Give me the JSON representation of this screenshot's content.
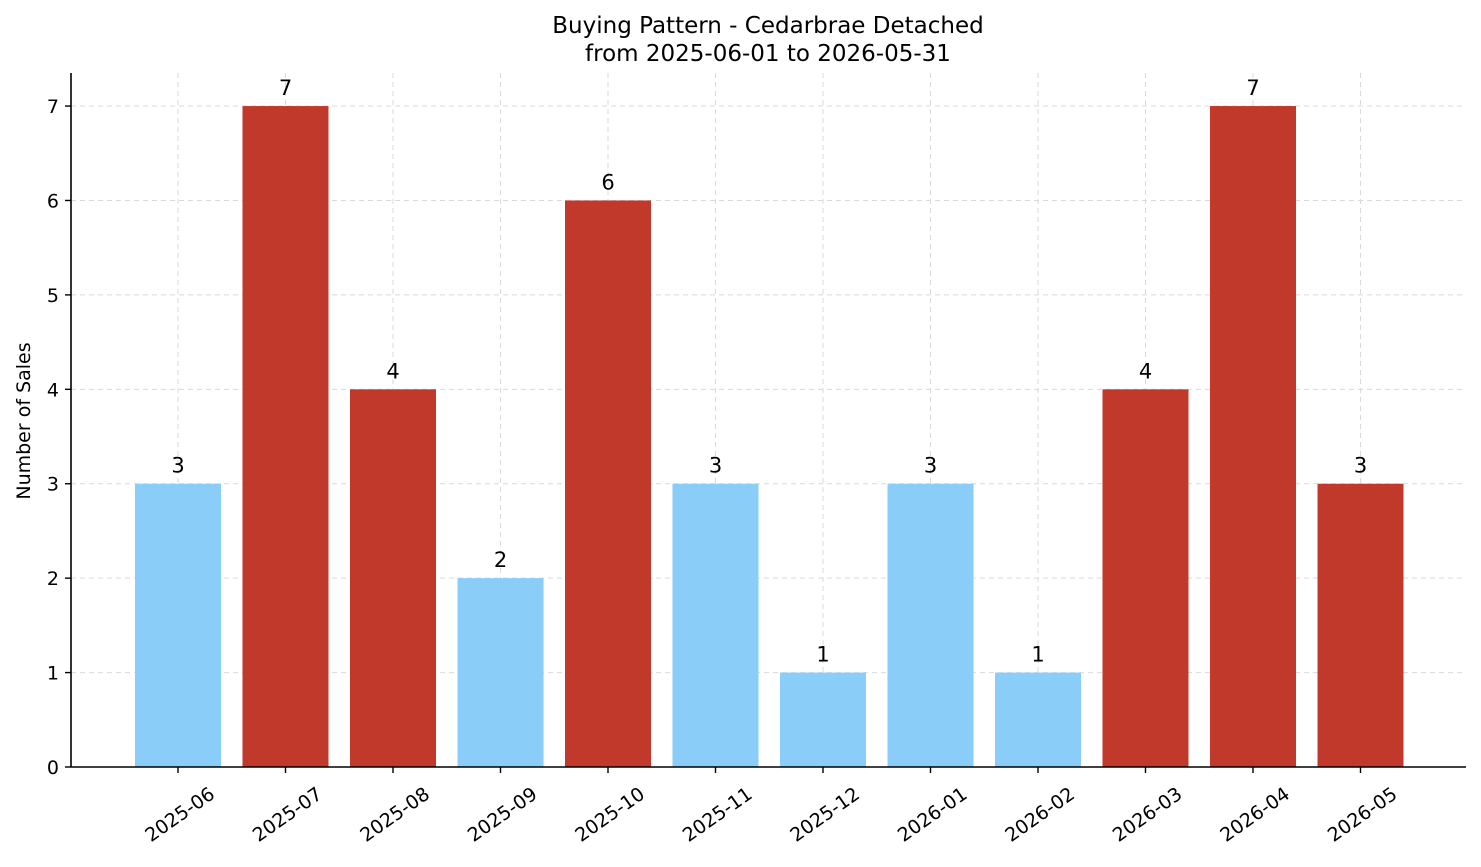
{
  "chart_data": {
    "type": "bar",
    "title": "Buying Pattern - Cedarbrae Detached",
    "subtitle": "from 2025-06-01 to 2026-05-31",
    "xlabel": "",
    "ylabel": "Number of Sales",
    "ylim": [
      0,
      7.35
    ],
    "yticks": [
      "0",
      "1",
      "2",
      "3",
      "4",
      "5",
      "6",
      "7"
    ],
    "grid": true,
    "categories": [
      "2025-06",
      "2025-07",
      "2025-08",
      "2025-09",
      "2025-10",
      "2025-11",
      "2025-12",
      "2026-01",
      "2026-02",
      "2026-03",
      "2026-04",
      "2026-05"
    ],
    "values": [
      3,
      7,
      4,
      2,
      6,
      3,
      1,
      3,
      1,
      4,
      7,
      3
    ],
    "bar_colors": [
      "#89cdf8",
      "#c0392b",
      "#c0392b",
      "#89cdf8",
      "#c0392b",
      "#89cdf8",
      "#89cdf8",
      "#89cdf8",
      "#89cdf8",
      "#c0392b",
      "#c0392b",
      "#c0392b"
    ],
    "data_labels": [
      "3",
      "7",
      "4",
      "2",
      "6",
      "3",
      "1",
      "3",
      "1",
      "4",
      "7",
      "3"
    ]
  }
}
